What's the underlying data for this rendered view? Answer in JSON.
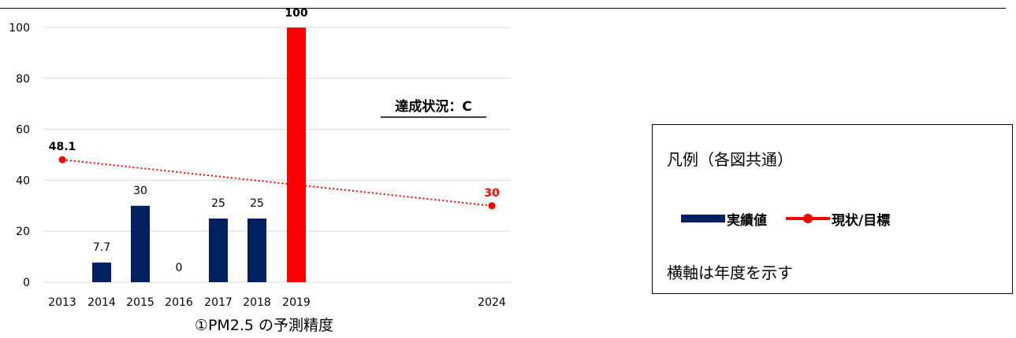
{
  "chart_data": {
    "type": "bar",
    "title": "①PM2.5 の予測精度",
    "ylim": [
      0,
      100
    ],
    "y_ticks": [
      0,
      20,
      40,
      60,
      80,
      100
    ],
    "grid": true,
    "categories": [
      "2013",
      "2014",
      "2015",
      "2016",
      "2017",
      "2018",
      "2019",
      "2024"
    ],
    "bars": [
      {
        "x": "2014",
        "value": 7.7,
        "label": "7.7"
      },
      {
        "x": "2015",
        "value": 30,
        "label": "30"
      },
      {
        "x": "2016",
        "value": 0,
        "label": "0"
      },
      {
        "x": "2017",
        "value": 25,
        "label": "25"
      },
      {
        "x": "2018",
        "value": 25,
        "label": "25"
      },
      {
        "x": "2019",
        "value": 100,
        "label": "100",
        "highlight": true
      }
    ],
    "line": {
      "name": "現状/目標",
      "points": [
        {
          "x": "2013",
          "value": 48.1,
          "label": "48.1"
        },
        {
          "x": "2024",
          "value": 30,
          "label": "30"
        }
      ]
    },
    "annotation": "達成状況：C",
    "colors": {
      "bar": "#002060",
      "highlight_bar": "#ff0000",
      "line": "#ff0000",
      "grid": "#d9d9d9",
      "axis_text": "#000000"
    }
  },
  "legend": {
    "title": "凡例（各図共通）",
    "bar_label": "実績値",
    "line_label": "現状/目標",
    "note": "横軸は年度を示す"
  }
}
